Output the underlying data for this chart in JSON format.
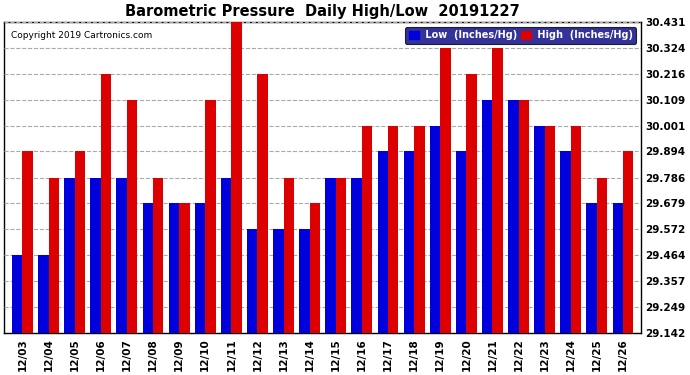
{
  "title": "Barometric Pressure  Daily High/Low  20191227",
  "copyright": "Copyright 2019 Cartronics.com",
  "dates": [
    "12/03",
    "12/04",
    "12/05",
    "12/06",
    "12/07",
    "12/08",
    "12/09",
    "12/10",
    "12/11",
    "12/12",
    "12/13",
    "12/14",
    "12/15",
    "12/16",
    "12/17",
    "12/18",
    "12/19",
    "12/20",
    "12/21",
    "12/22",
    "12/23",
    "12/24",
    "12/25",
    "12/26"
  ],
  "low": [
    29.464,
    29.464,
    29.786,
    29.786,
    29.786,
    29.679,
    29.679,
    29.679,
    29.786,
    29.572,
    29.572,
    29.572,
    29.786,
    29.786,
    29.894,
    29.894,
    30.001,
    29.894,
    30.109,
    30.109,
    30.001,
    29.894,
    29.679,
    29.679
  ],
  "high": [
    29.894,
    29.786,
    29.894,
    30.216,
    30.109,
    29.786,
    29.679,
    30.109,
    30.431,
    30.216,
    29.786,
    29.679,
    29.786,
    30.001,
    30.001,
    30.001,
    30.324,
    30.216,
    30.324,
    30.109,
    30.001,
    30.001,
    29.786,
    29.894
  ],
  "ymin": 29.142,
  "ymax": 30.431,
  "yticks": [
    29.142,
    29.249,
    29.357,
    29.464,
    29.572,
    29.679,
    29.786,
    29.894,
    30.001,
    30.109,
    30.216,
    30.324,
    30.431
  ],
  "low_color": "#0000dd",
  "high_color": "#dd0000",
  "bg_color": "#ffffff",
  "grid_color": "#aaaaaa",
  "title_color": "#000000",
  "bar_width": 0.4,
  "legend_bg": "#000080",
  "legend_text": "#ffffff"
}
